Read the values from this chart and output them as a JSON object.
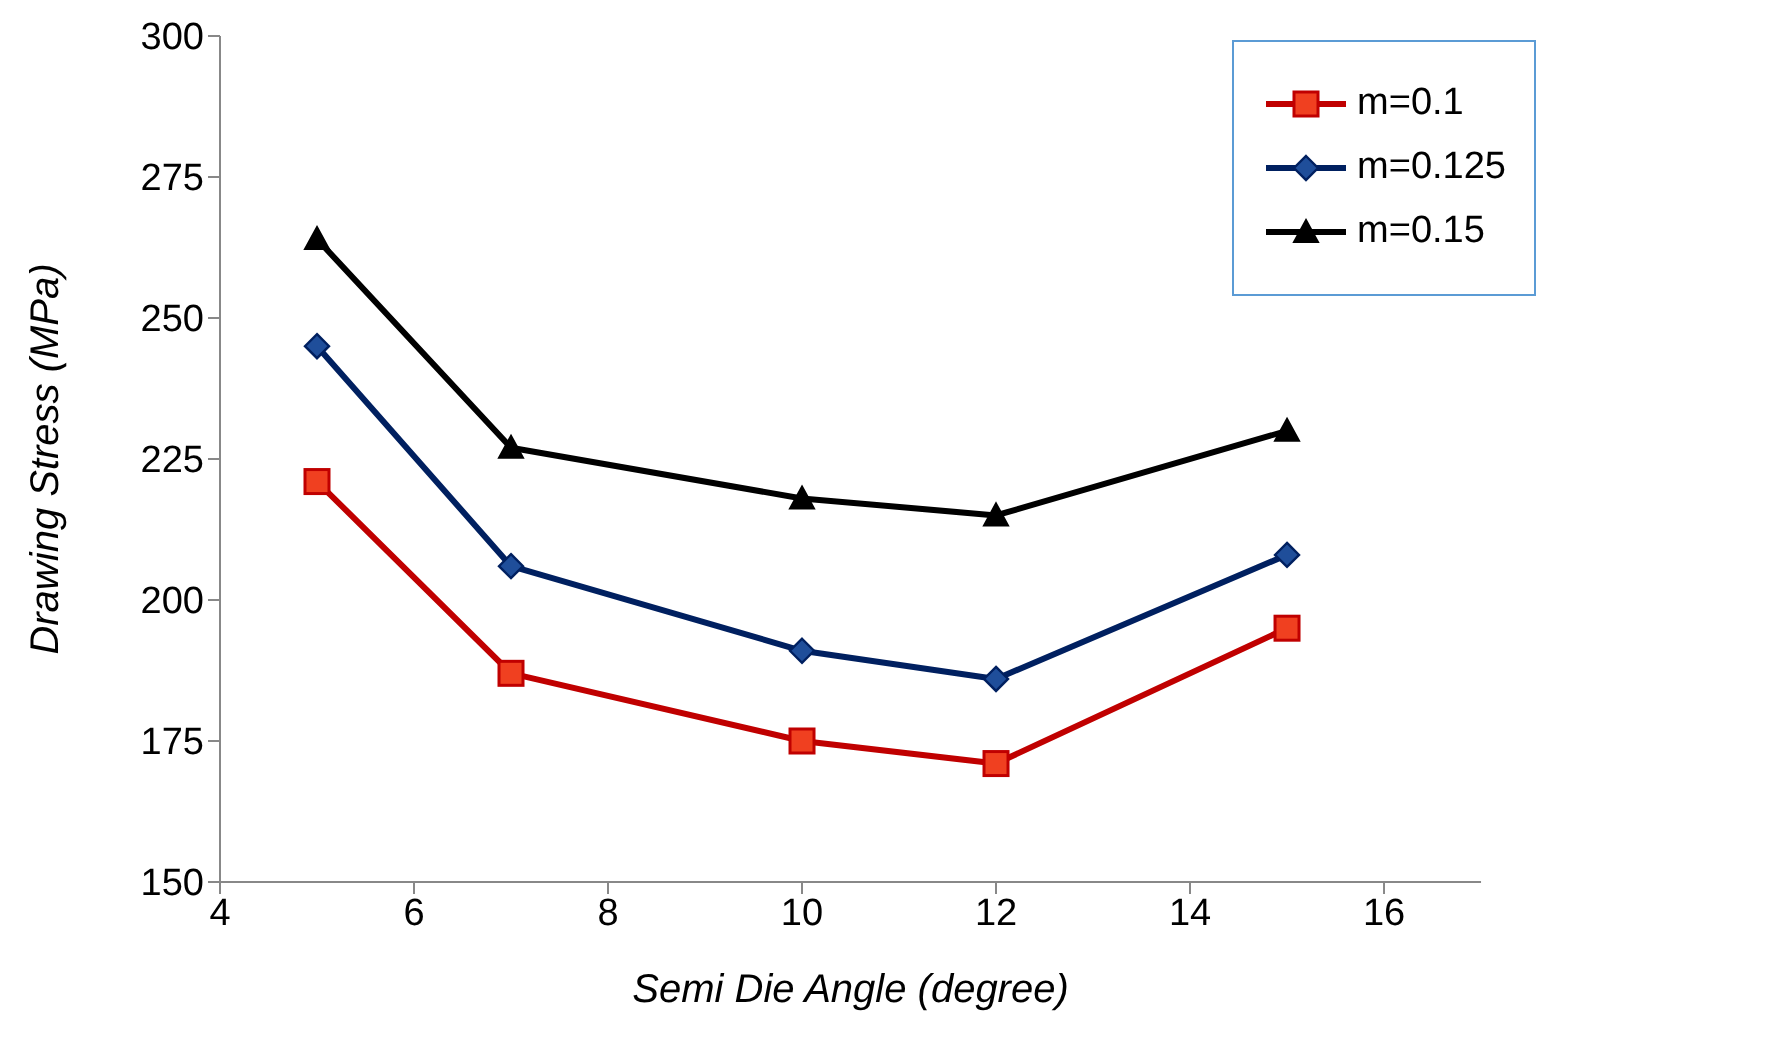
{
  "chart_data": {
    "type": "line",
    "xlabel": "Semi Die Angle (degree)",
    "ylabel": "Drawing Stress (MPa)",
    "x": [
      5,
      7,
      10,
      12,
      15
    ],
    "series": [
      {
        "name": "m=0.1",
        "color": "#c00000",
        "marker": "square",
        "values": [
          221,
          187,
          175,
          171,
          195
        ]
      },
      {
        "name": "m=0.125",
        "color": "#002060",
        "marker": "diamond",
        "values": [
          245,
          206,
          191,
          186,
          208
        ]
      },
      {
        "name": "m=0.15",
        "color": "#000000",
        "marker": "triangle",
        "values": [
          264,
          227,
          218,
          215,
          230
        ]
      }
    ],
    "xlim": [
      4,
      17
    ],
    "xticks": [
      4,
      6,
      8,
      10,
      12,
      14,
      16
    ],
    "ylim": [
      150,
      300
    ],
    "yticks": [
      150,
      175,
      200,
      225,
      250,
      275,
      300
    ],
    "grid": false,
    "legend": "top right",
    "line_style": "solid"
  }
}
